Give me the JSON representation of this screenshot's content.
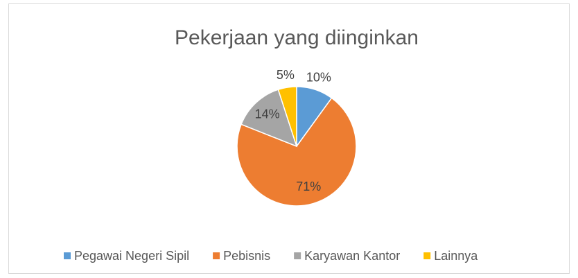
{
  "chart_data": {
    "type": "pie",
    "title": "Pekerjaan yang diinginkan",
    "categories": [
      "Pegawai Negeri Sipil",
      "Pebisnis",
      "Karyawan Kantor",
      "Lainnya"
    ],
    "values": [
      10,
      71,
      14,
      5
    ],
    "value_labels": [
      "10%",
      "71%",
      "14%",
      "5%"
    ],
    "colors": [
      "#5b9bd5",
      "#ed7d31",
      "#a5a5a5",
      "#ffc000"
    ],
    "legend": "bottom"
  }
}
